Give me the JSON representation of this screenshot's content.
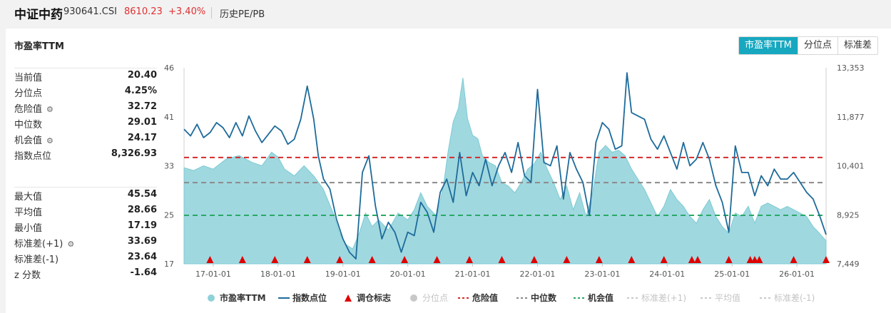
{
  "header": {
    "name": "中证中药",
    "code": "930641.CSI",
    "price": "8610.23",
    "change": "+3.40%",
    "link": "历史PE/PB"
  },
  "card": {
    "title": "市盈率TTM",
    "buttons": [
      "市盈率TTM",
      "分位点",
      "标准差"
    ],
    "active_button": 0
  },
  "stats_top": [
    {
      "label": "当前值",
      "value": "20.40",
      "gear": false
    },
    {
      "label": "分位点",
      "value": "4.25%",
      "gear": false
    },
    {
      "label": "危险值",
      "value": "32.72",
      "gear": true
    },
    {
      "label": "中位数",
      "value": "29.01",
      "gear": false
    },
    {
      "label": "机会值",
      "value": "24.17",
      "gear": true
    },
    {
      "label": "指数点位",
      "value": "8,326.93",
      "gear": false
    }
  ],
  "stats_bottom": [
    {
      "label": "最大值",
      "value": "45.54",
      "gear": false
    },
    {
      "label": "平均值",
      "value": "28.66",
      "gear": false
    },
    {
      "label": "最小值",
      "value": "17.19",
      "gear": false
    },
    {
      "label": "标准差(+1)",
      "value": "33.69",
      "gear": true
    },
    {
      "label": "标准差(-1)",
      "value": "23.64",
      "gear": false
    },
    {
      "label": "z 分数",
      "value": "-1.64",
      "gear": false
    }
  ],
  "colors": {
    "pe_area": "#8fd1da",
    "pe_area_line": "#7ccbd4",
    "index_line": "#1d6b9a",
    "marker": "#e00000",
    "danger": "#d42b2b",
    "median": "#8a8a8a",
    "opportunity": "#2aa866",
    "disabled": "#c8c8c8",
    "accent": "#17a8c0"
  },
  "chart_data": {
    "type": "area",
    "title": "",
    "left_axis": {
      "ticks": [
        "46",
        "41",
        "33",
        "25",
        "17"
      ],
      "ylim": [
        17,
        46
      ]
    },
    "right_axis": {
      "ticks": [
        "13,353",
        "11,877",
        "10,401",
        "8,925",
        "7,449"
      ],
      "ylim": [
        7449,
        13353
      ]
    },
    "x_ticks": [
      "17-01-01",
      "18-01-01",
      "19-01-01",
      "20-01-01",
      "21-01-01",
      "22-01-01",
      "23-01-01",
      "24-01-01",
      "25-01-01",
      "26-01-01"
    ],
    "x_range": [
      2016.55,
      2026.45
    ],
    "reference_lines": {
      "danger": 32.72,
      "median": 29.01,
      "opportunity": 24.17
    },
    "pe_series": {
      "name": "市盈率TTM",
      "x": [
        2016.55,
        2016.7,
        2016.85,
        2017.0,
        2017.2,
        2017.4,
        2017.6,
        2017.75,
        2017.9,
        2018.0,
        2018.1,
        2018.25,
        2018.4,
        2018.55,
        2018.7,
        2018.85,
        2018.95,
        2019.05,
        2019.15,
        2019.25,
        2019.35,
        2019.45,
        2019.55,
        2019.7,
        2019.85,
        2020.0,
        2020.1,
        2020.2,
        2020.3,
        2020.45,
        2020.55,
        2020.62,
        2020.7,
        2020.78,
        2020.85,
        2020.92,
        2021.0,
        2021.08,
        2021.15,
        2021.25,
        2021.35,
        2021.45,
        2021.55,
        2021.65,
        2021.75,
        2021.85,
        2021.95,
        2022.05,
        2022.15,
        2022.25,
        2022.35,
        2022.45,
        2022.55,
        2022.65,
        2022.75,
        2022.85,
        2022.95,
        2023.05,
        2023.15,
        2023.25,
        2023.35,
        2023.45,
        2023.55,
        2023.65,
        2023.75,
        2023.85,
        2023.95,
        2024.05,
        2024.15,
        2024.25,
        2024.35,
        2024.45,
        2024.55,
        2024.65,
        2024.75,
        2024.85,
        2024.95,
        2025.05,
        2025.15,
        2025.25,
        2025.35,
        2025.45,
        2025.55,
        2025.65,
        2025.75,
        2025.85,
        2025.95,
        2026.05,
        2026.15,
        2026.25,
        2026.35,
        2026.45
      ],
      "values": [
        31.2,
        30.8,
        31.5,
        31.0,
        32.5,
        33.0,
        32.0,
        31.5,
        33.5,
        32.8,
        31.0,
        30.0,
        31.5,
        30.0,
        28.0,
        24.5,
        21.5,
        19.8,
        19.2,
        21.5,
        24.5,
        22.5,
        23.5,
        22.0,
        24.5,
        23.5,
        25.0,
        27.5,
        25.5,
        24.0,
        28.5,
        33.5,
        38.0,
        40.0,
        44.5,
        38.5,
        36.0,
        35.5,
        33.0,
        32.0,
        31.5,
        29.0,
        28.5,
        27.5,
        29.0,
        31.0,
        31.8,
        33.5,
        31.0,
        29.0,
        26.5,
        28.5,
        25.0,
        27.5,
        24.0,
        27.5,
        33.5,
        34.5,
        33.5,
        33.8,
        33.0,
        31.0,
        29.5,
        28.0,
        26.0,
        24.0,
        25.5,
        28.0,
        26.5,
        25.5,
        24.0,
        23.0,
        25.0,
        26.5,
        24.0,
        22.5,
        21.5,
        24.5,
        24.0,
        25.5,
        23.0,
        25.5,
        26.0,
        25.5,
        25.0,
        25.5,
        25.0,
        24.5,
        24.0,
        22.5,
        21.5,
        20.4
      ]
    },
    "index_series": {
      "name": "指数点位",
      "x": [
        2016.55,
        2016.65,
        2016.75,
        2016.85,
        2016.95,
        2017.05,
        2017.15,
        2017.25,
        2017.35,
        2017.45,
        2017.55,
        2017.65,
        2017.75,
        2017.85,
        2017.95,
        2018.05,
        2018.15,
        2018.25,
        2018.35,
        2018.45,
        2018.5,
        2018.55,
        2018.62,
        2018.7,
        2018.8,
        2018.9,
        2019.0,
        2019.1,
        2019.2,
        2019.3,
        2019.4,
        2019.5,
        2019.6,
        2019.7,
        2019.8,
        2019.9,
        2020.0,
        2020.1,
        2020.2,
        2020.3,
        2020.4,
        2020.5,
        2020.6,
        2020.7,
        2020.8,
        2020.9,
        2021.0,
        2021.1,
        2021.2,
        2021.3,
        2021.4,
        2021.5,
        2021.6,
        2021.7,
        2021.8,
        2021.9,
        2022.0,
        2022.1,
        2022.2,
        2022.3,
        2022.4,
        2022.5,
        2022.6,
        2022.7,
        2022.8,
        2022.9,
        2023.0,
        2023.1,
        2023.2,
        2023.3,
        2023.38,
        2023.45,
        2023.55,
        2023.65,
        2023.75,
        2023.85,
        2023.95,
        2024.05,
        2024.15,
        2024.25,
        2024.35,
        2024.45,
        2024.55,
        2024.65,
        2024.75,
        2024.85,
        2024.95,
        2025.05,
        2025.15,
        2025.25,
        2025.35,
        2025.45,
        2025.55,
        2025.65,
        2025.75,
        2025.85,
        2025.95,
        2026.05,
        2026.15,
        2026.25,
        2026.35,
        2026.45
      ],
      "values": [
        11500,
        11300,
        11650,
        11250,
        11400,
        11700,
        11550,
        11250,
        11700,
        11300,
        11900,
        11450,
        11100,
        11350,
        11600,
        11450,
        11050,
        11200,
        11800,
        12800,
        12300,
        11800,
        10700,
        10000,
        9700,
        8800,
        8200,
        7800,
        7600,
        10200,
        10700,
        9200,
        8200,
        8700,
        8400,
        7800,
        8400,
        8300,
        9300,
        9000,
        8400,
        9600,
        10000,
        9300,
        10800,
        9500,
        10200,
        9800,
        10600,
        9800,
        10400,
        10800,
        10200,
        11100,
        10100,
        9900,
        12700,
        10500,
        10400,
        11000,
        9400,
        10800,
        10300,
        9900,
        8900,
        11100,
        11700,
        11500,
        10900,
        11000,
        13200,
        12000,
        11900,
        11800,
        11200,
        10900,
        11300,
        10800,
        10300,
        11100,
        10400,
        10600,
        11100,
        10600,
        9800,
        9300,
        8400,
        11000,
        10200,
        10200,
        9500,
        10100,
        9800,
        10300,
        10000,
        10000,
        10200,
        9900,
        9600,
        9400,
        8900,
        8327
      ]
    },
    "rebalance_markers_x": [
      2016.95,
      2017.45,
      2017.95,
      2018.45,
      2018.95,
      2019.45,
      2019.95,
      2020.45,
      2020.95,
      2021.45,
      2021.95,
      2022.45,
      2022.95,
      2023.45,
      2023.95,
      2024.38,
      2024.47,
      2024.95,
      2025.28,
      2025.35,
      2025.42,
      2025.95,
      2026.45
    ],
    "legend": [
      {
        "label": "市盈率TTM",
        "kind": "dot",
        "color": "#8fd1da",
        "enabled": true
      },
      {
        "label": "指数点位",
        "kind": "line",
        "color": "#1d6b9a",
        "enabled": true
      },
      {
        "label": "调仓标志",
        "kind": "triangle",
        "color": "#e00000",
        "enabled": true
      },
      {
        "label": "分位点",
        "kind": "dot",
        "color": "#c8c8c8",
        "enabled": false
      },
      {
        "label": "危险值",
        "kind": "dash",
        "color": "#d42b2b",
        "enabled": true
      },
      {
        "label": "中位数",
        "kind": "dash",
        "color": "#8a8a8a",
        "enabled": true
      },
      {
        "label": "机会值",
        "kind": "dash",
        "color": "#2aa866",
        "enabled": true
      },
      {
        "label": "标准差(+1)",
        "kind": "dash",
        "color": "#c8c8c8",
        "enabled": false
      },
      {
        "label": "平均值",
        "kind": "dash",
        "color": "#c8c8c8",
        "enabled": false
      },
      {
        "label": "标准差(-1)",
        "kind": "dash",
        "color": "#c8c8c8",
        "enabled": false
      }
    ]
  }
}
